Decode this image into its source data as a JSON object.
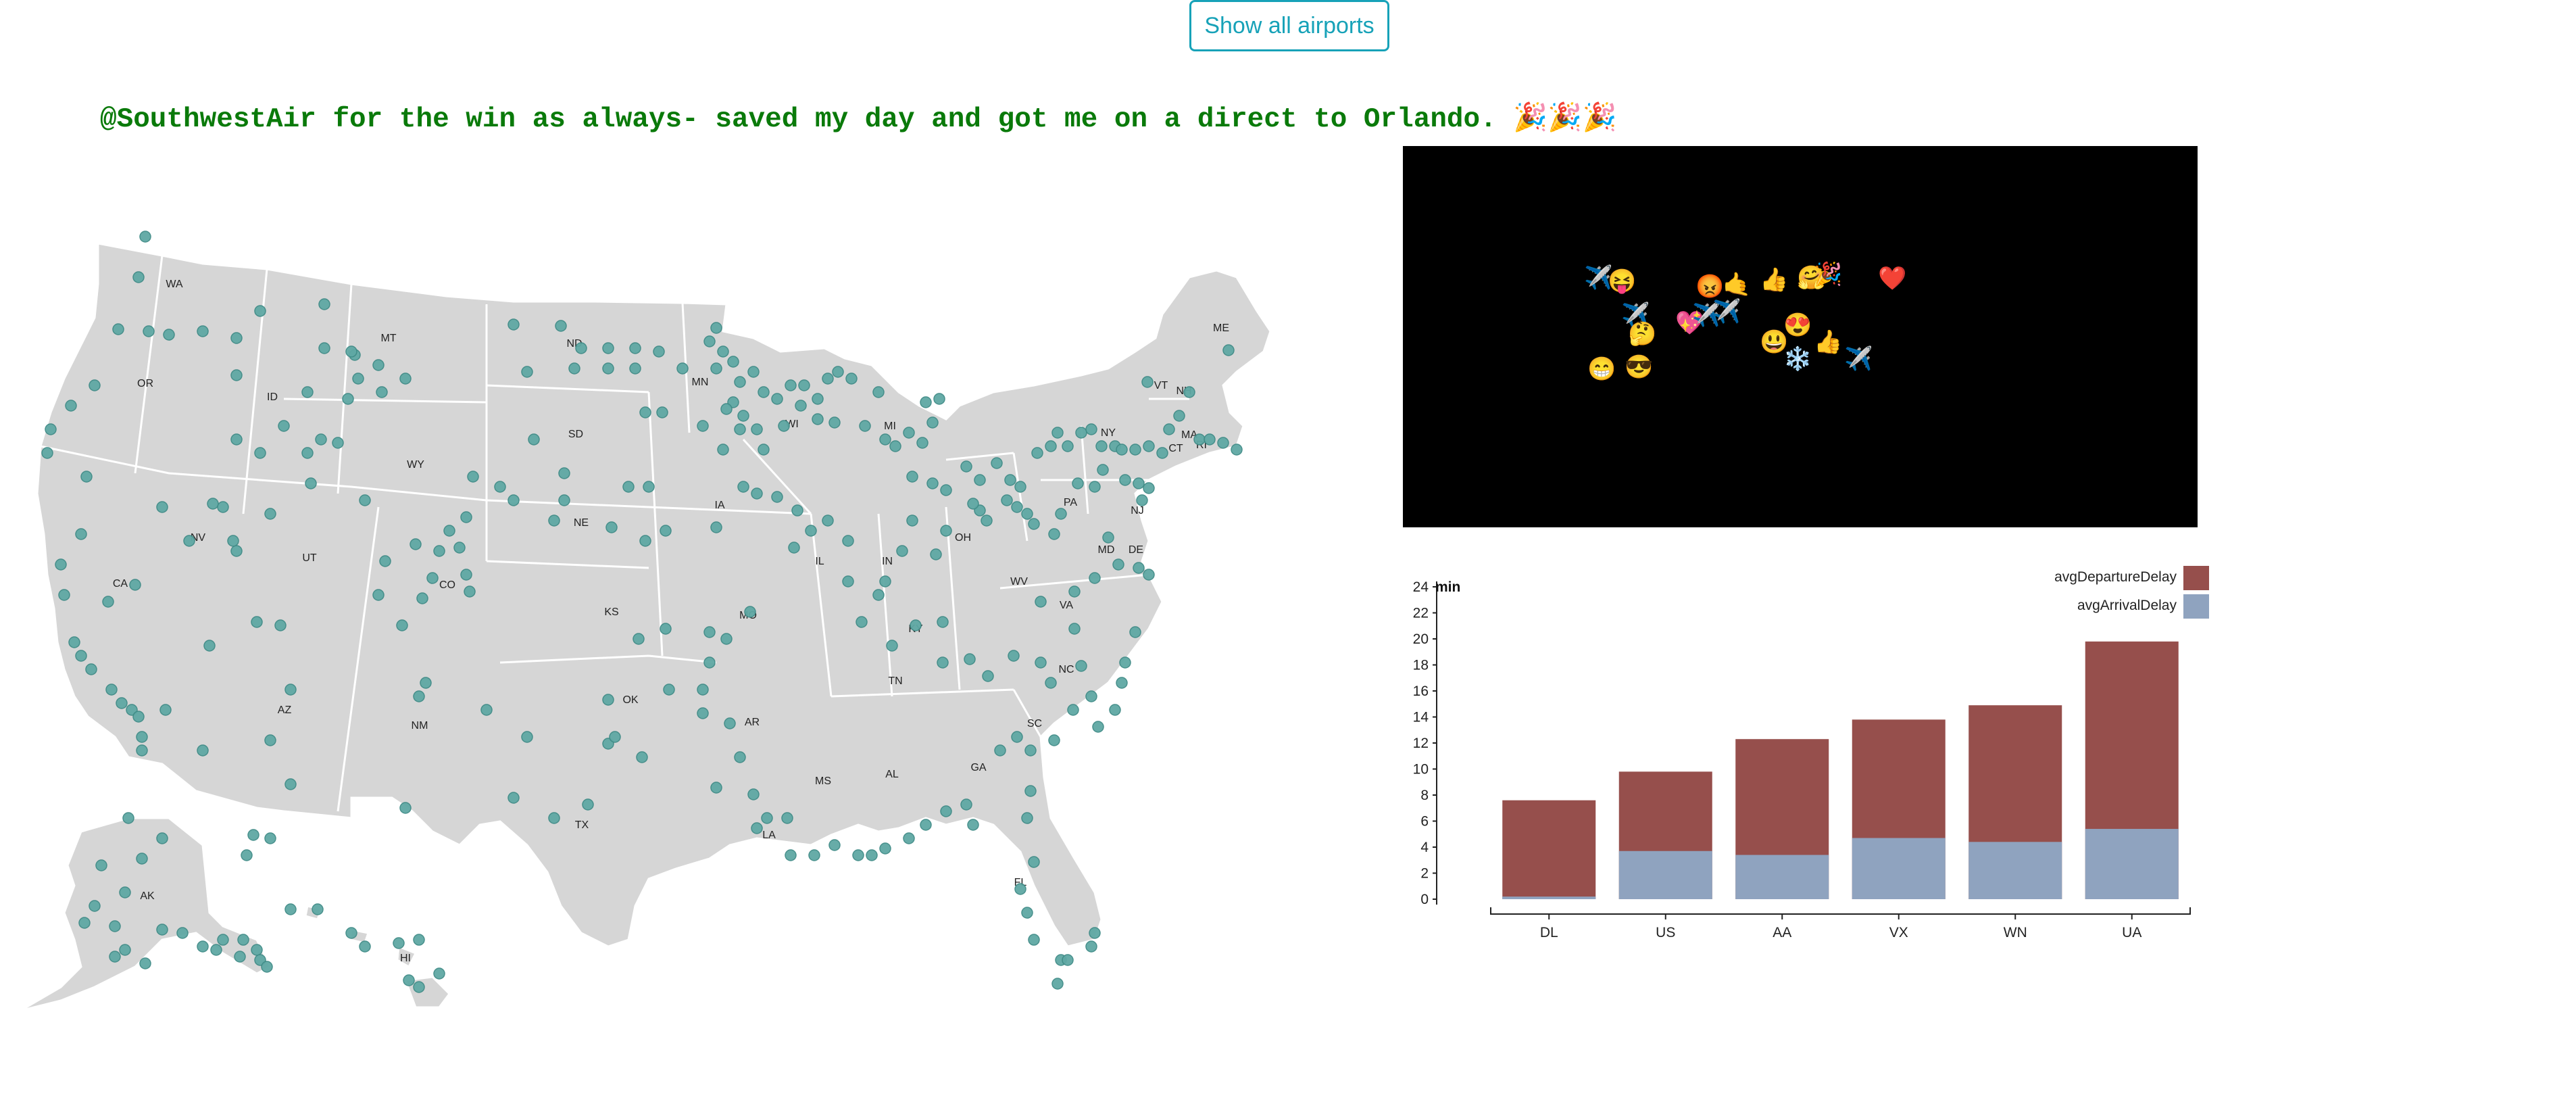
{
  "toolbar": {
    "show_all_label": "Show all airports"
  },
  "tweet": {
    "text": "@SouthwestAir for the win as always- saved my day and got me on a direct to Orlando. 🎉🎉🎉"
  },
  "map": {
    "state_labels": [
      "WA",
      "OR",
      "ID",
      "MT",
      "WY",
      "ND",
      "SD",
      "NE",
      "MN",
      "IA",
      "WI",
      "MI",
      "IL",
      "IN",
      "OH",
      "KY",
      "TN",
      "MS",
      "AL",
      "GA",
      "FL",
      "SC",
      "NC",
      "VA",
      "WV",
      "PA",
      "NY",
      "VT",
      "NH",
      "ME",
      "MA",
      "CT",
      "RI",
      "NJ",
      "DE",
      "MD",
      "MO",
      "KS",
      "OK",
      "TX",
      "LA",
      "AR",
      "NM",
      "AZ",
      "UT",
      "CO",
      "NV",
      "CA",
      "AK",
      "HI"
    ],
    "airport_color": "#5fa8a4",
    "land_color": "#d6d6d6"
  },
  "emoji_cloud": {
    "background": "#000000",
    "items": [
      "✈️",
      "😝",
      "✈️",
      "💖",
      "🤔",
      "✈️",
      "😡",
      "🤙",
      "👍",
      "🤗",
      "❤️",
      "😍",
      "👍",
      "😃",
      "❄️",
      "✈️",
      "😁",
      "😎",
      "✈️",
      "🎉"
    ]
  },
  "chart_data": {
    "type": "bar",
    "stacked": false,
    "categories": [
      "DL",
      "US",
      "AA",
      "VX",
      "WN",
      "UA"
    ],
    "series": [
      {
        "name": "avgDepartureDelay",
        "color": "#964f4c",
        "values": [
          7.6,
          9.8,
          12.3,
          13.8,
          14.9,
          19.8
        ]
      },
      {
        "name": "avgArrivalDelay",
        "color": "#8fa3bf",
        "values": [
          0.2,
          3.7,
          3.4,
          4.7,
          4.4,
          5.4
        ]
      }
    ],
    "ylabel": "min",
    "ylim": [
      0,
      24
    ],
    "yticks": [
      0,
      2,
      4,
      6,
      8,
      10,
      12,
      14,
      16,
      18,
      20,
      22,
      24
    ],
    "legend": "top-right",
    "grid": false
  }
}
